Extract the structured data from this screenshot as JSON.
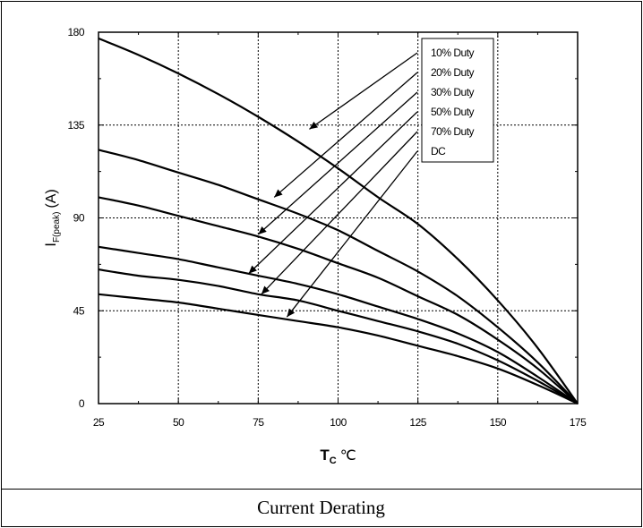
{
  "caption": "Current Derating",
  "chart_data": {
    "type": "line",
    "title": "",
    "xlabel_main": "T",
    "xlabel_sub": "C",
    "xlabel_unit": "℃",
    "ylabel_main": "I",
    "ylabel_sub": "F(peak)",
    "ylabel_unit": "(A)",
    "xlim": [
      25,
      175
    ],
    "ylim": [
      0,
      180
    ],
    "x_ticks": [
      25,
      50,
      75,
      100,
      125,
      150,
      175
    ],
    "y_ticks": [
      0,
      45,
      90,
      135,
      180
    ],
    "grid": true,
    "legend_position": "top-right",
    "x": [
      25,
      37.5,
      50,
      62.5,
      75,
      87.5,
      100,
      112.5,
      125,
      137.5,
      150,
      162.5,
      175
    ],
    "series": [
      {
        "name": "10% Duty",
        "values": [
          177,
          169,
          160,
          150,
          139,
          127,
          114,
          100,
          87,
          70,
          50,
          27,
          0
        ],
        "arrow_target": [
          91,
          133
        ]
      },
      {
        "name": "20% Duty",
        "values": [
          123,
          118,
          112,
          106,
          99,
          92,
          84,
          74,
          64,
          52,
          37,
          20,
          0
        ],
        "arrow_target": [
          80,
          100
        ]
      },
      {
        "name": "30% Duty",
        "values": [
          100,
          96,
          91,
          86,
          81,
          75,
          68,
          61,
          52,
          43,
          31,
          17,
          0
        ],
        "arrow_target": [
          75,
          82
        ]
      },
      {
        "name": "50% Duty",
        "values": [
          76,
          73,
          70,
          66,
          62,
          58,
          53,
          47,
          41,
          34,
          25,
          13,
          0
        ],
        "arrow_target": [
          72,
          63
        ]
      },
      {
        "name": "70% Duty",
        "values": [
          65,
          62,
          60,
          57,
          53,
          50,
          45,
          40,
          35,
          29,
          21,
          11,
          0
        ],
        "arrow_target": [
          76,
          53
        ]
      },
      {
        "name": "DC",
        "values": [
          53,
          51,
          49,
          46,
          43,
          40,
          37,
          33,
          28,
          23,
          17,
          9,
          0
        ],
        "arrow_target": [
          84,
          42
        ]
      }
    ]
  }
}
